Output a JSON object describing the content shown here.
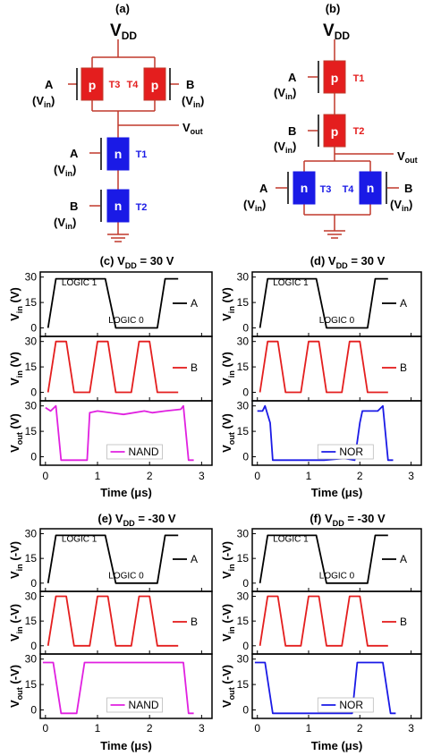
{
  "circuits": {
    "a": {
      "label": "(a)",
      "vdd": "V",
      "vdd_sub": "DD",
      "vout": "V",
      "vout_sub": "out",
      "input_a": "A",
      "input_b": "B",
      "vin_open": "(V",
      "vin_sub": "in",
      "vin_close": ")",
      "p_letter": "p",
      "n_letter": "n",
      "t1": "T1",
      "t2": "T2",
      "t3": "T3",
      "t4": "T4"
    },
    "b": {
      "label": "(b)",
      "vdd": "V",
      "vdd_sub": "DD",
      "vout": "V",
      "vout_sub": "out",
      "input_a": "A",
      "input_b": "B",
      "vin_open": "(V",
      "vin_sub": "in",
      "vin_close": ")",
      "p_letter": "p",
      "n_letter": "n",
      "t1": "T1",
      "t2": "T2",
      "t3": "T3",
      "t4": "T4"
    }
  },
  "colors": {
    "p_type": "#e41e1e",
    "n_type": "#1a1ae6",
    "wire": "#c0392b",
    "series_a": "#000000",
    "series_b": "#e41e1e",
    "nand": "#e020e0",
    "nor": "#1a1ae6"
  },
  "chart_data": [
    {
      "type": "line",
      "panel": "(c)",
      "title_prefix": "(c)  V",
      "title_sub": "DD",
      "title_suffix": " = 30 V",
      "xlabel": "Time (μs)",
      "xticks": [
        "0",
        "1",
        "2",
        "3"
      ],
      "xlim": [
        -0.1,
        3.2
      ],
      "subplots": [
        {
          "ylabel": "V",
          "ylabel_sub": "in",
          "ylabel_unit": " (V)",
          "yticks": [
            "30",
            "15",
            "0"
          ],
          "ylim": [
            -5,
            33
          ],
          "series": [
            {
              "name": "A",
              "color": "#000000",
              "x": [
                0.05,
                0.2,
                1.15,
                1.35,
                2.15,
                2.3,
                2.55
              ],
              "y": [
                0,
                29,
                29,
                0,
                0,
                29,
                29
              ]
            }
          ],
          "annotations": [
            {
              "text": "LOGIC 1",
              "x": 0.65,
              "y": 25
            },
            {
              "text": "LOGIC 0",
              "x": 1.55,
              "y": 3
            }
          ]
        },
        {
          "ylabel": "V",
          "ylabel_sub": "in",
          "ylabel_unit": " (V)",
          "yticks": [
            "30",
            "15",
            "0"
          ],
          "ylim": [
            -5,
            33
          ],
          "series": [
            {
              "name": "B",
              "color": "#e41e1e",
              "x": [
                0.05,
                0.2,
                0.4,
                0.55,
                0.85,
                1.0,
                1.2,
                1.35,
                1.65,
                1.8,
                2.0,
                2.15,
                2.55
              ],
              "y": [
                0,
                30,
                30,
                0,
                0,
                30,
                30,
                0,
                0,
                30,
                30,
                0,
                0
              ]
            }
          ],
          "annotations": []
        },
        {
          "ylabel": "V",
          "ylabel_sub": "out",
          "ylabel_unit": " (V)",
          "yticks": [
            "30",
            "15",
            "0"
          ],
          "ylim": [
            -5,
            33
          ],
          "series": [
            {
              "name": "NAND",
              "color": "#e020e0",
              "x": [
                0.0,
                0.1,
                0.2,
                0.3,
                0.8,
                0.85,
                1.0,
                1.5,
                1.9,
                2.05,
                2.3,
                2.6,
                2.65,
                2.75,
                2.85
              ],
              "y": [
                29,
                27,
                30,
                -2,
                -2,
                26,
                27,
                25,
                27,
                26,
                27,
                28,
                30,
                -2,
                -2
              ]
            }
          ],
          "annotations": []
        }
      ]
    },
    {
      "type": "line",
      "panel": "(d)",
      "title_prefix": "(d)  V",
      "title_sub": "DD",
      "title_suffix": " = 30 V",
      "xlabel": "Time (μs)",
      "xticks": [
        "0",
        "1",
        "2",
        "3"
      ],
      "xlim": [
        -0.1,
        3.2
      ],
      "subplots": [
        {
          "ylabel": "V",
          "ylabel_sub": "in",
          "ylabel_unit": " (V)",
          "yticks": [
            "30",
            "15",
            "0"
          ],
          "ylim": [
            -5,
            33
          ],
          "series": [
            {
              "name": "A",
              "color": "#000000",
              "x": [
                0.05,
                0.2,
                1.15,
                1.35,
                2.15,
                2.3,
                2.55
              ],
              "y": [
                0,
                29,
                29,
                0,
                0,
                29,
                29
              ]
            }
          ],
          "annotations": [
            {
              "text": "LOGIC 1",
              "x": 0.65,
              "y": 25
            },
            {
              "text": "LOGIC 0",
              "x": 1.55,
              "y": 3
            }
          ]
        },
        {
          "ylabel": "V",
          "ylabel_sub": "in",
          "ylabel_unit": " (V)",
          "yticks": [
            "30",
            "15",
            "0"
          ],
          "ylim": [
            -5,
            33
          ],
          "series": [
            {
              "name": "B",
              "color": "#e41e1e",
              "x": [
                0.05,
                0.2,
                0.4,
                0.55,
                0.85,
                1.0,
                1.2,
                1.35,
                1.65,
                1.8,
                2.0,
                2.15,
                2.55
              ],
              "y": [
                0,
                30,
                30,
                0,
                0,
                30,
                30,
                0,
                0,
                30,
                30,
                0,
                0
              ]
            }
          ],
          "annotations": []
        },
        {
          "ylabel": "V",
          "ylabel_sub": "out",
          "ylabel_unit": " (V)",
          "yticks": [
            "30",
            "15",
            "0"
          ],
          "ylim": [
            -5,
            33
          ],
          "series": [
            {
              "name": "NOR",
              "color": "#1a1ae6",
              "x": [
                0.0,
                0.1,
                0.15,
                0.25,
                0.3,
                0.8,
                1.3,
                1.7,
                1.9,
                2.0,
                2.05,
                2.35,
                2.45,
                2.55,
                2.65
              ],
              "y": [
                27,
                27,
                30,
                20,
                -2,
                -2,
                -2,
                -1,
                -2,
                20,
                27,
                27,
                30,
                -2,
                -2
              ]
            }
          ],
          "annotations": []
        }
      ]
    },
    {
      "type": "line",
      "panel": "(e)",
      "title_prefix": "(e)  V",
      "title_sub": "DD",
      "title_suffix": " = -30 V",
      "xlabel": "Time (μs)",
      "xticks": [
        "0",
        "1",
        "2",
        "3"
      ],
      "xlim": [
        -0.1,
        3.2
      ],
      "subplots": [
        {
          "ylabel": "V",
          "ylabel_sub": "in",
          "ylabel_unit": " (-V)",
          "yticks": [
            "30",
            "15",
            "0"
          ],
          "ylim": [
            -5,
            33
          ],
          "series": [
            {
              "name": "A",
              "color": "#000000",
              "x": [
                0.05,
                0.2,
                1.15,
                1.35,
                2.15,
                2.3,
                2.55
              ],
              "y": [
                0,
                29,
                29,
                0,
                0,
                29,
                29
              ]
            }
          ],
          "annotations": [
            {
              "text": "LOGIC 1",
              "x": 0.65,
              "y": 25
            },
            {
              "text": "LOGIC 0",
              "x": 1.55,
              "y": 3
            }
          ]
        },
        {
          "ylabel": "V",
          "ylabel_sub": "in",
          "ylabel_unit": " (-V)",
          "yticks": [
            "30",
            "15",
            "0"
          ],
          "ylim": [
            -5,
            33
          ],
          "series": [
            {
              "name": "B",
              "color": "#e41e1e",
              "x": [
                0.05,
                0.2,
                0.4,
                0.55,
                0.85,
                1.0,
                1.2,
                1.35,
                1.65,
                1.8,
                2.0,
                2.15,
                2.55
              ],
              "y": [
                0,
                30,
                30,
                0,
                0,
                30,
                30,
                0,
                0,
                30,
                30,
                0,
                0
              ]
            }
          ],
          "annotations": []
        },
        {
          "ylabel": "V",
          "ylabel_sub": "out",
          "ylabel_unit": " (-V)",
          "yticks": [
            "30",
            "15",
            "0"
          ],
          "ylim": [
            -5,
            33
          ],
          "series": [
            {
              "name": "NAND",
              "color": "#e020e0",
              "x": [
                -0.05,
                0.1,
                0.15,
                0.3,
                0.55,
                0.6,
                0.75,
                1.5,
                2.6,
                2.65,
                2.75,
                2.85
              ],
              "y": [
                28,
                28,
                28,
                -2,
                -2,
                -2,
                28,
                28,
                28,
                28,
                -2,
                -2
              ]
            }
          ],
          "annotations": []
        }
      ]
    },
    {
      "type": "line",
      "panel": "(f)",
      "title_prefix": "(f)  V",
      "title_sub": "DD",
      "title_suffix": " = -30 V",
      "xlabel": "Time (μs)",
      "xticks": [
        "0",
        "1",
        "2",
        "3"
      ],
      "xlim": [
        -0.1,
        3.2
      ],
      "subplots": [
        {
          "ylabel": "V",
          "ylabel_sub": "in",
          "ylabel_unit": " (-V)",
          "yticks": [
            "30",
            "15",
            "0"
          ],
          "ylim": [
            -5,
            33
          ],
          "series": [
            {
              "name": "A",
              "color": "#000000",
              "x": [
                0.05,
                0.2,
                1.15,
                1.35,
                2.15,
                2.3,
                2.55
              ],
              "y": [
                0,
                29,
                29,
                0,
                0,
                29,
                29
              ]
            }
          ],
          "annotations": [
            {
              "text": "LOGIC 1",
              "x": 0.65,
              "y": 25
            },
            {
              "text": "LOGIC 0",
              "x": 1.55,
              "y": 3
            }
          ]
        },
        {
          "ylabel": "V",
          "ylabel_sub": "in",
          "ylabel_unit": " (-V)",
          "yticks": [
            "30",
            "15",
            "0"
          ],
          "ylim": [
            -5,
            33
          ],
          "series": [
            {
              "name": "B",
              "color": "#e41e1e",
              "x": [
                0.05,
                0.2,
                0.4,
                0.55,
                0.85,
                1.0,
                1.2,
                1.35,
                1.65,
                1.8,
                2.0,
                2.15,
                2.55
              ],
              "y": [
                0,
                30,
                30,
                0,
                0,
                30,
                30,
                0,
                0,
                30,
                30,
                0,
                0
              ]
            }
          ],
          "annotations": []
        },
        {
          "ylabel": "V",
          "ylabel_sub": "out",
          "ylabel_unit": " (-V)",
          "yticks": [
            "30",
            "15",
            "0"
          ],
          "ylim": [
            -5,
            33
          ],
          "series": [
            {
              "name": "NOR",
              "color": "#1a1ae6",
              "x": [
                -0.05,
                0.1,
                0.15,
                0.3,
                1.0,
                1.85,
                1.95,
                2.45,
                2.6,
                2.7
              ],
              "y": [
                28,
                28,
                28,
                -2,
                -2,
                -2,
                28,
                28,
                -2,
                -2
              ]
            }
          ],
          "annotations": []
        }
      ]
    }
  ]
}
